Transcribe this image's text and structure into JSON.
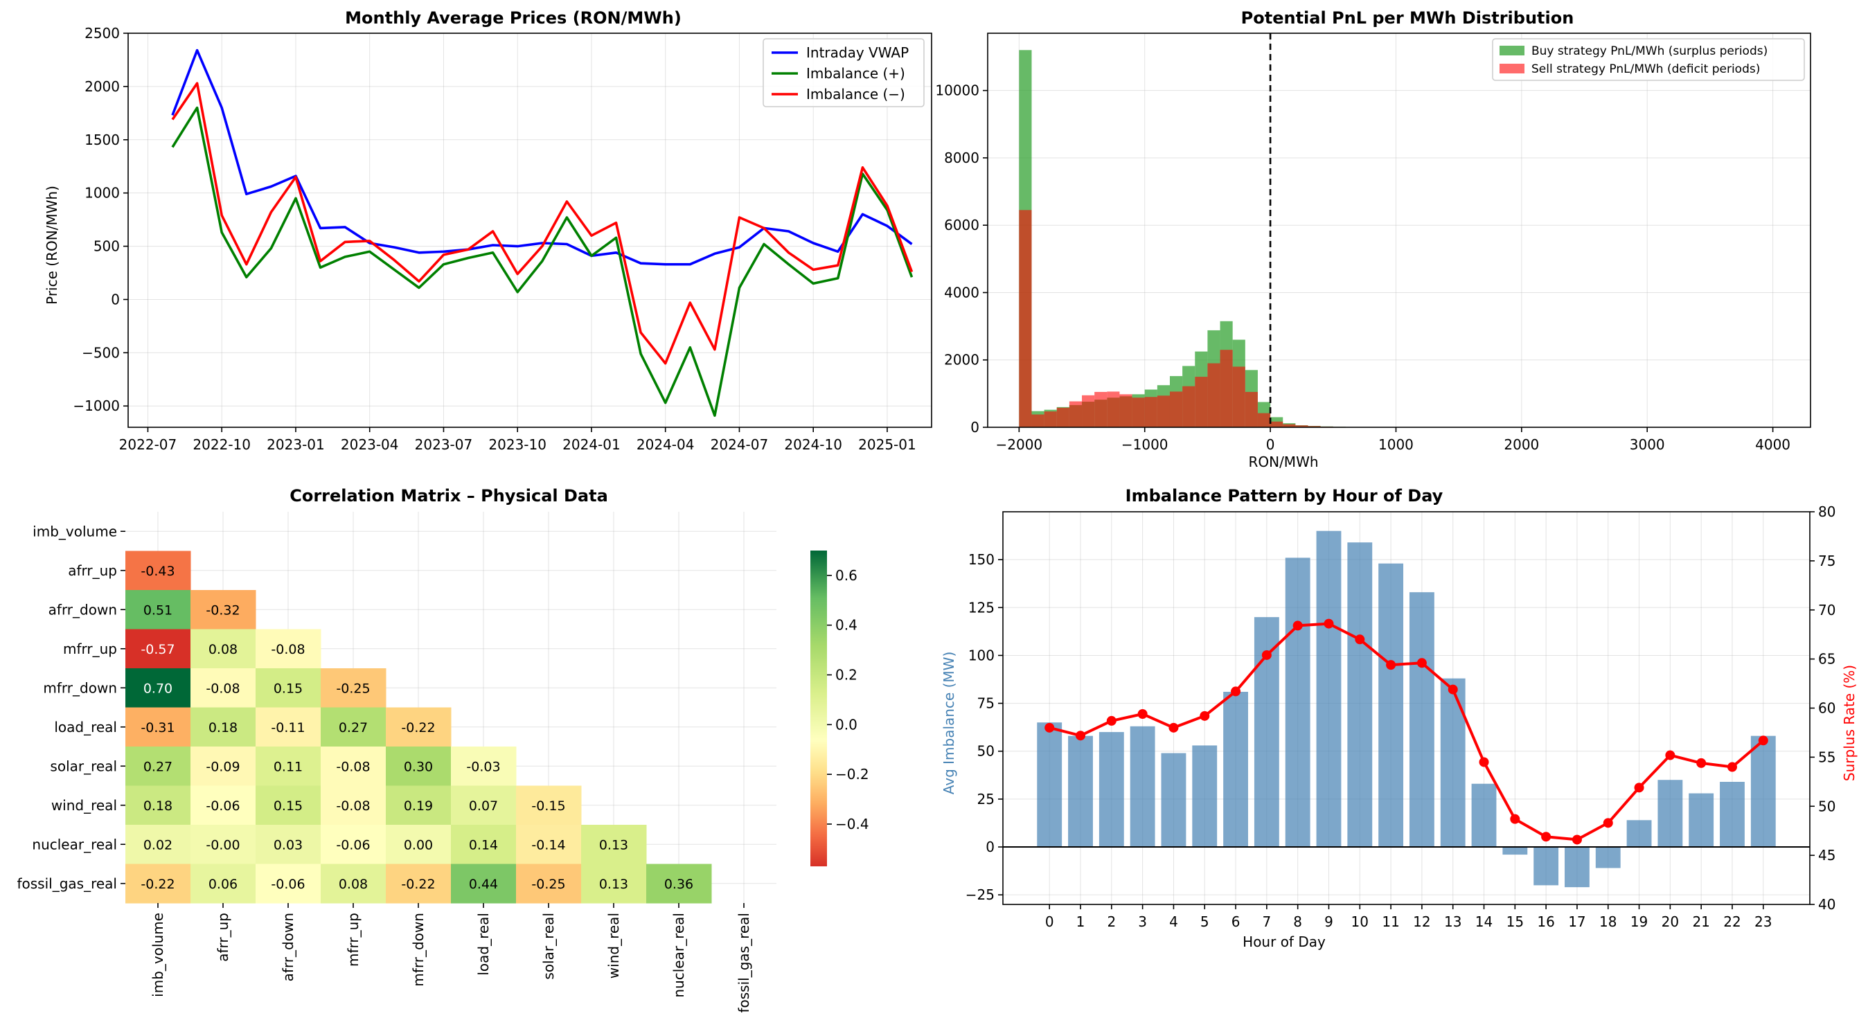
{
  "chart_data": [
    {
      "type": "line",
      "title": "Monthly Average Prices (RON/MWh)",
      "xlabel": "",
      "ylabel": "Price (RON/MWh)",
      "ylim": [
        -1200,
        2500
      ],
      "yticks": [
        -1000,
        -500,
        0,
        500,
        1000,
        1500,
        2000,
        2500
      ],
      "xticks": [
        "2022-07",
        "2022-10",
        "2023-01",
        "2023-04",
        "2023-07",
        "2023-10",
        "2024-01",
        "2024-04",
        "2024-07",
        "2024-10",
        "2025-01"
      ],
      "x_start": "2022-08",
      "x_end": "2025-02",
      "grid": true,
      "legend": "top-right",
      "series": [
        {
          "name": "Intraday VWAP",
          "color": "#0000ff",
          "values": [
            1730,
            2340,
            1800,
            990,
            1060,
            1160,
            670,
            680,
            530,
            490,
            440,
            450,
            470,
            510,
            500,
            530,
            520,
            410,
            440,
            340,
            330,
            330,
            430,
            490,
            670,
            640,
            530,
            450,
            800,
            690,
            520
          ]
        },
        {
          "name": "Imbalance (+)",
          "color": "#008000",
          "values": [
            1430,
            1800,
            630,
            210,
            480,
            950,
            300,
            400,
            450,
            280,
            110,
            330,
            390,
            440,
            70,
            360,
            770,
            410,
            580,
            -510,
            -970,
            -450,
            -1090,
            110,
            520,
            330,
            150,
            200,
            1180,
            840,
            210
          ]
        },
        {
          "name": "Imbalance (−)",
          "color": "#ff0000",
          "values": [
            1690,
            2030,
            790,
            330,
            820,
            1150,
            360,
            540,
            550,
            370,
            170,
            420,
            470,
            640,
            240,
            500,
            920,
            600,
            720,
            -310,
            -600,
            -30,
            -470,
            770,
            670,
            440,
            280,
            320,
            1240,
            880,
            260
          ]
        }
      ]
    },
    {
      "type": "bar",
      "subtype": "histogram",
      "title": "Potential PnL per MWh Distribution",
      "xlabel": "RON/MWh",
      "ylabel": "",
      "xlim": [
        -2250,
        4300
      ],
      "ylim": [
        0,
        11700
      ],
      "xticks": [
        -2000,
        -1000,
        0,
        1000,
        2000,
        3000,
        4000
      ],
      "yticks": [
        0,
        2000,
        4000,
        6000,
        8000,
        10000
      ],
      "bin_width": 100,
      "bin_starts": [
        -2000,
        -1900,
        -1800,
        -1700,
        -1600,
        -1500,
        -1400,
        -1300,
        -1200,
        -1100,
        -1000,
        -900,
        -800,
        -700,
        -600,
        -500,
        -400,
        -300,
        -200,
        -100,
        0,
        100,
        200,
        300,
        400,
        500,
        600
      ],
      "reference_line_x": 0,
      "grid": true,
      "legend": "top-right",
      "series": [
        {
          "name": "Buy strategy PnL/MWh (surplus periods)",
          "color": "#2ca02c",
          "values": [
            11200,
            480,
            520,
            600,
            660,
            760,
            820,
            880,
            920,
            980,
            1120,
            1250,
            1520,
            1820,
            2250,
            2880,
            3150,
            2600,
            1700,
            750,
            300,
            120,
            60,
            40,
            25,
            15,
            8
          ]
        },
        {
          "name": "Sell strategy PnL/MWh (deficit periods)",
          "color": "#ff0000",
          "values": [
            6450,
            380,
            470,
            580,
            770,
            950,
            1050,
            1060,
            980,
            880,
            900,
            940,
            1060,
            1220,
            1500,
            1900,
            2300,
            1800,
            1050,
            420,
            170,
            90,
            55,
            35,
            20,
            12,
            6
          ]
        }
      ]
    },
    {
      "type": "heatmap",
      "title": "Correlation Matrix – Physical Data",
      "labels": [
        "imb_volume",
        "afrr_up",
        "afrr_down",
        "mfrr_up",
        "mfrr_down",
        "load_real",
        "solar_real",
        "wind_real",
        "nuclear_real",
        "fossil_gas_real"
      ],
      "values": [
        [
          null,
          null,
          null,
          null,
          null,
          null,
          null,
          null,
          null,
          null
        ],
        [
          -0.43,
          null,
          null,
          null,
          null,
          null,
          null,
          null,
          null,
          null
        ],
        [
          0.51,
          -0.32,
          null,
          null,
          null,
          null,
          null,
          null,
          null,
          null
        ],
        [
          -0.57,
          0.08,
          -0.08,
          null,
          null,
          null,
          null,
          null,
          null,
          null
        ],
        [
          0.7,
          -0.08,
          0.15,
          -0.25,
          null,
          null,
          null,
          null,
          null,
          null
        ],
        [
          -0.31,
          0.18,
          -0.11,
          0.27,
          -0.22,
          null,
          null,
          null,
          null,
          null
        ],
        [
          0.27,
          -0.09,
          0.11,
          -0.08,
          0.3,
          -0.03,
          null,
          null,
          null,
          null
        ],
        [
          0.18,
          -0.06,
          0.15,
          -0.08,
          0.19,
          0.07,
          -0.15,
          null,
          null,
          null
        ],
        [
          0.02,
          -0.0,
          0.03,
          -0.06,
          0.0,
          0.14,
          -0.14,
          0.13,
          null,
          null
        ],
        [
          -0.22,
          0.06,
          -0.06,
          0.08,
          -0.22,
          0.44,
          -0.25,
          0.13,
          0.36,
          null
        ]
      ],
      "colorbar_range": [
        -0.57,
        0.7
      ],
      "colorbar_ticks": [
        -0.4,
        -0.2,
        0.0,
        0.2,
        0.4,
        0.6
      ],
      "colormap": "RdYlGn"
    },
    {
      "type": "bar",
      "title": "Imbalance Pattern by Hour of Day",
      "xlabel": "Hour of Day",
      "ylabel": "Avg Imbalance (MW)",
      "ylabel_right": "Surplus Rate (%)",
      "categories": [
        "0",
        "1",
        "2",
        "3",
        "4",
        "5",
        "6",
        "7",
        "8",
        "9",
        "10",
        "11",
        "12",
        "13",
        "14",
        "15",
        "16",
        "17",
        "18",
        "19",
        "20",
        "21",
        "22",
        "23"
      ],
      "ylim": [
        -30,
        175
      ],
      "yticks": [
        -25,
        0,
        25,
        50,
        75,
        100,
        125,
        150
      ],
      "ylim_right": [
        40,
        80
      ],
      "yticks_right": [
        40,
        45,
        50,
        55,
        60,
        65,
        70,
        75,
        80
      ],
      "grid": true,
      "bar_color": "#4682b4",
      "line_color": "#ff0000",
      "left_label_color": "#4682b4",
      "right_label_color": "#ff0000",
      "series": [
        {
          "name": "",
          "values": [
            65,
            58,
            60,
            63,
            49,
            53,
            81,
            120,
            151,
            165,
            159,
            148,
            133,
            88,
            33,
            -4,
            -20,
            -21,
            -11,
            14,
            35,
            28,
            34,
            58
          ]
        },
        {
          "name": "",
          "axis": "right",
          "values": [
            58.0,
            57.2,
            58.7,
            59.4,
            58.0,
            59.2,
            61.7,
            65.4,
            68.4,
            68.6,
            67.0,
            64.4,
            64.6,
            61.9,
            54.5,
            48.7,
            46.9,
            46.6,
            48.3,
            51.9,
            55.2,
            54.4,
            54.0,
            56.7
          ]
        }
      ]
    }
  ]
}
